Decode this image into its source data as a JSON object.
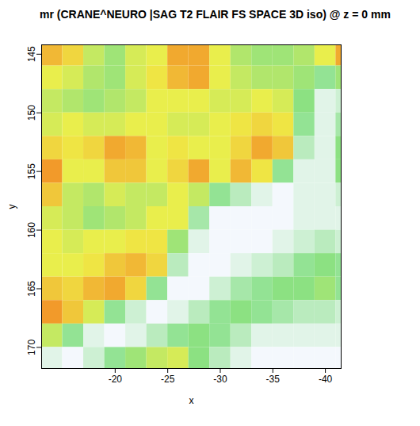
{
  "chart_data": {
    "type": "heatmap",
    "title": "mr (CRANE^NEURO |SAG T2 FLAIR FS SPACE 3D iso) @ z = 0 mm",
    "x_label": "x",
    "y_label": "y",
    "xlim": [
      -13,
      -41.5
    ],
    "ylim": [
      144.2,
      171.8
    ],
    "xticks": [
      -20,
      -25,
      -30,
      -35,
      -40
    ],
    "yticks": [
      145,
      150,
      155,
      160,
      165,
      170
    ],
    "cells": {
      "x": [
        -14,
        -16,
        -18,
        -20,
        -22,
        -24,
        -26,
        -28,
        -30,
        -32,
        -34,
        -36,
        -38,
        -40,
        -42
      ],
      "y": [
        145,
        147,
        149,
        151,
        153,
        155,
        157,
        159,
        161,
        163,
        165,
        167,
        169,
        171
      ],
      "values": [
        [
          0.8,
          0.7,
          0.5,
          0.4,
          0.55,
          0.6,
          0.85,
          0.85,
          0.6,
          0.45,
          0.4,
          0.4,
          0.45,
          0.6,
          0.85
        ],
        [
          0.6,
          0.55,
          0.45,
          0.4,
          0.55,
          0.65,
          0.8,
          0.85,
          0.6,
          0.5,
          0.45,
          0.45,
          0.4,
          0.3,
          0.4
        ],
        [
          0.5,
          0.45,
          0.4,
          0.45,
          0.5,
          0.6,
          0.6,
          0.6,
          0.55,
          0.55,
          0.6,
          0.55,
          0.35,
          0.1,
          0.15
        ],
        [
          0.55,
          0.6,
          0.55,
          0.55,
          0.6,
          0.6,
          0.55,
          0.55,
          0.6,
          0.65,
          0.7,
          0.65,
          0.3,
          0.1,
          0.25
        ],
        [
          0.7,
          0.65,
          0.7,
          0.85,
          0.8,
          0.6,
          0.65,
          0.6,
          0.6,
          0.7,
          0.85,
          0.75,
          0.2,
          0.1,
          0.35
        ],
        [
          0.9,
          0.6,
          0.6,
          0.75,
          0.75,
          0.6,
          0.7,
          0.85,
          0.6,
          0.8,
          0.65,
          0.3,
          0.1,
          0.1,
          0.35
        ],
        [
          0.75,
          0.5,
          0.45,
          0.55,
          0.5,
          0.5,
          0.6,
          0.5,
          0.3,
          0.2,
          0.1,
          0.05,
          0.1,
          0.1,
          0.15
        ],
        [
          0.55,
          0.5,
          0.4,
          0.45,
          0.5,
          0.6,
          0.6,
          0.25,
          0.05,
          0.05,
          0.05,
          0.05,
          0.1,
          0.1,
          0.1
        ],
        [
          0.6,
          0.55,
          0.6,
          0.6,
          0.65,
          0.65,
          0.4,
          0.1,
          0.05,
          0.05,
          0.05,
          0.1,
          0.15,
          0.2,
          0.15
        ],
        [
          0.6,
          0.6,
          0.65,
          0.75,
          0.8,
          0.7,
          0.2,
          0.05,
          0.05,
          0.1,
          0.15,
          0.2,
          0.3,
          0.35,
          0.3
        ],
        [
          0.75,
          0.7,
          0.8,
          0.85,
          0.7,
          0.3,
          0.05,
          0.05,
          0.15,
          0.25,
          0.3,
          0.35,
          0.35,
          0.4,
          0.3
        ],
        [
          0.9,
          0.75,
          0.55,
          0.3,
          0.15,
          0.05,
          0.1,
          0.2,
          0.3,
          0.35,
          0.3,
          0.25,
          0.2,
          0.2,
          0.15
        ],
        [
          0.5,
          0.3,
          0.1,
          0.05,
          0.1,
          0.2,
          0.3,
          0.35,
          0.3,
          0.2,
          0.1,
          0.1,
          0.1,
          0.1,
          0.1
        ],
        [
          0.1,
          0.05,
          0.15,
          0.3,
          0.4,
          0.5,
          0.55,
          0.35,
          0.2,
          0.1,
          0.05,
          0.05,
          0.05,
          0.05,
          0.05
        ]
      ]
    }
  }
}
